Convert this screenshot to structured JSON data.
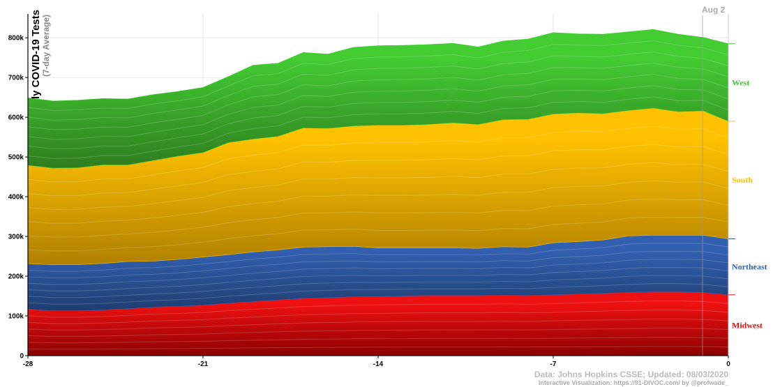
{
  "chart_data": {
    "type": "area",
    "stacked": true,
    "title": "ly COVID-19 Tests",
    "subtitle": "(7-day Average)",
    "hover_date": "Aug 2",
    "x": [
      -28,
      -27,
      -26,
      -25,
      -24,
      -23,
      -22,
      -21,
      -20,
      -19,
      -18,
      -17,
      -16,
      -15,
      -14,
      -13,
      -12,
      -11,
      -10,
      -9,
      -8,
      -7,
      -6,
      -5,
      -4,
      -3,
      -2,
      -1,
      0
    ],
    "xlim": [
      -28,
      0
    ],
    "ylim": [
      0,
      860000
    ],
    "x_ticks": [
      -28,
      -21,
      -14,
      -7,
      0
    ],
    "x_tick_labels": [
      "-28",
      "-21",
      "-14",
      "-7",
      "0"
    ],
    "y_ticks": [
      0,
      100000,
      200000,
      300000,
      400000,
      500000,
      600000,
      700000,
      800000
    ],
    "y_tick_labels": [
      "0",
      "100k",
      "200k",
      "300k",
      "400k",
      "500k",
      "600k",
      "700k",
      "800k"
    ],
    "grid": true,
    "series": [
      {
        "name": "Midwest",
        "color": "#ee1111",
        "dark_color": "#8b0000",
        "values": [
          117000,
          113000,
          113000,
          115000,
          118000,
          122000,
          124000,
          127000,
          132000,
          136000,
          140000,
          144000,
          146000,
          148000,
          149000,
          150000,
          151000,
          151000,
          151000,
          152000,
          151000,
          153000,
          155000,
          157000,
          159000,
          161000,
          161000,
          159000,
          153000
        ]
      },
      {
        "name": "Northeast",
        "color": "#3260b0",
        "dark_color": "#1e3d70",
        "values": [
          114000,
          116000,
          116000,
          117000,
          119000,
          116000,
          118000,
          121000,
          122000,
          125000,
          126000,
          129000,
          128000,
          127000,
          122000,
          121000,
          120000,
          120000,
          119000,
          122000,
          122000,
          131000,
          132000,
          134000,
          142000,
          142000,
          142000,
          144000,
          141000
        ]
      },
      {
        "name": "South",
        "color": "#ffc200",
        "dark_color": "#b08000",
        "values": [
          248000,
          243000,
          244000,
          248000,
          243000,
          253000,
          260000,
          263000,
          282000,
          284000,
          286000,
          300000,
          298000,
          303000,
          309000,
          309000,
          311000,
          315000,
          312000,
          320000,
          322000,
          324000,
          324000,
          318000,
          316000,
          320000,
          311000,
          313000,
          296000
        ]
      },
      {
        "name": "West",
        "color": "#44cc33",
        "dark_color": "#2e7d1f",
        "values": [
          170000,
          169000,
          170000,
          167000,
          166000,
          166000,
          163000,
          164000,
          166000,
          186000,
          184000,
          190000,
          187000,
          198000,
          200000,
          201000,
          201000,
          200000,
          195000,
          198000,
          202000,
          205000,
          199000,
          200000,
          198000,
          198000,
          195000,
          185000,
          195000
        ]
      }
    ]
  },
  "credits": {
    "source": "Data: Johns Hopkins CSSE; Updated: 08/03/2020",
    "viz": "Interactive Visualization: https://91-DIVOC.com/ by @profwade_"
  }
}
